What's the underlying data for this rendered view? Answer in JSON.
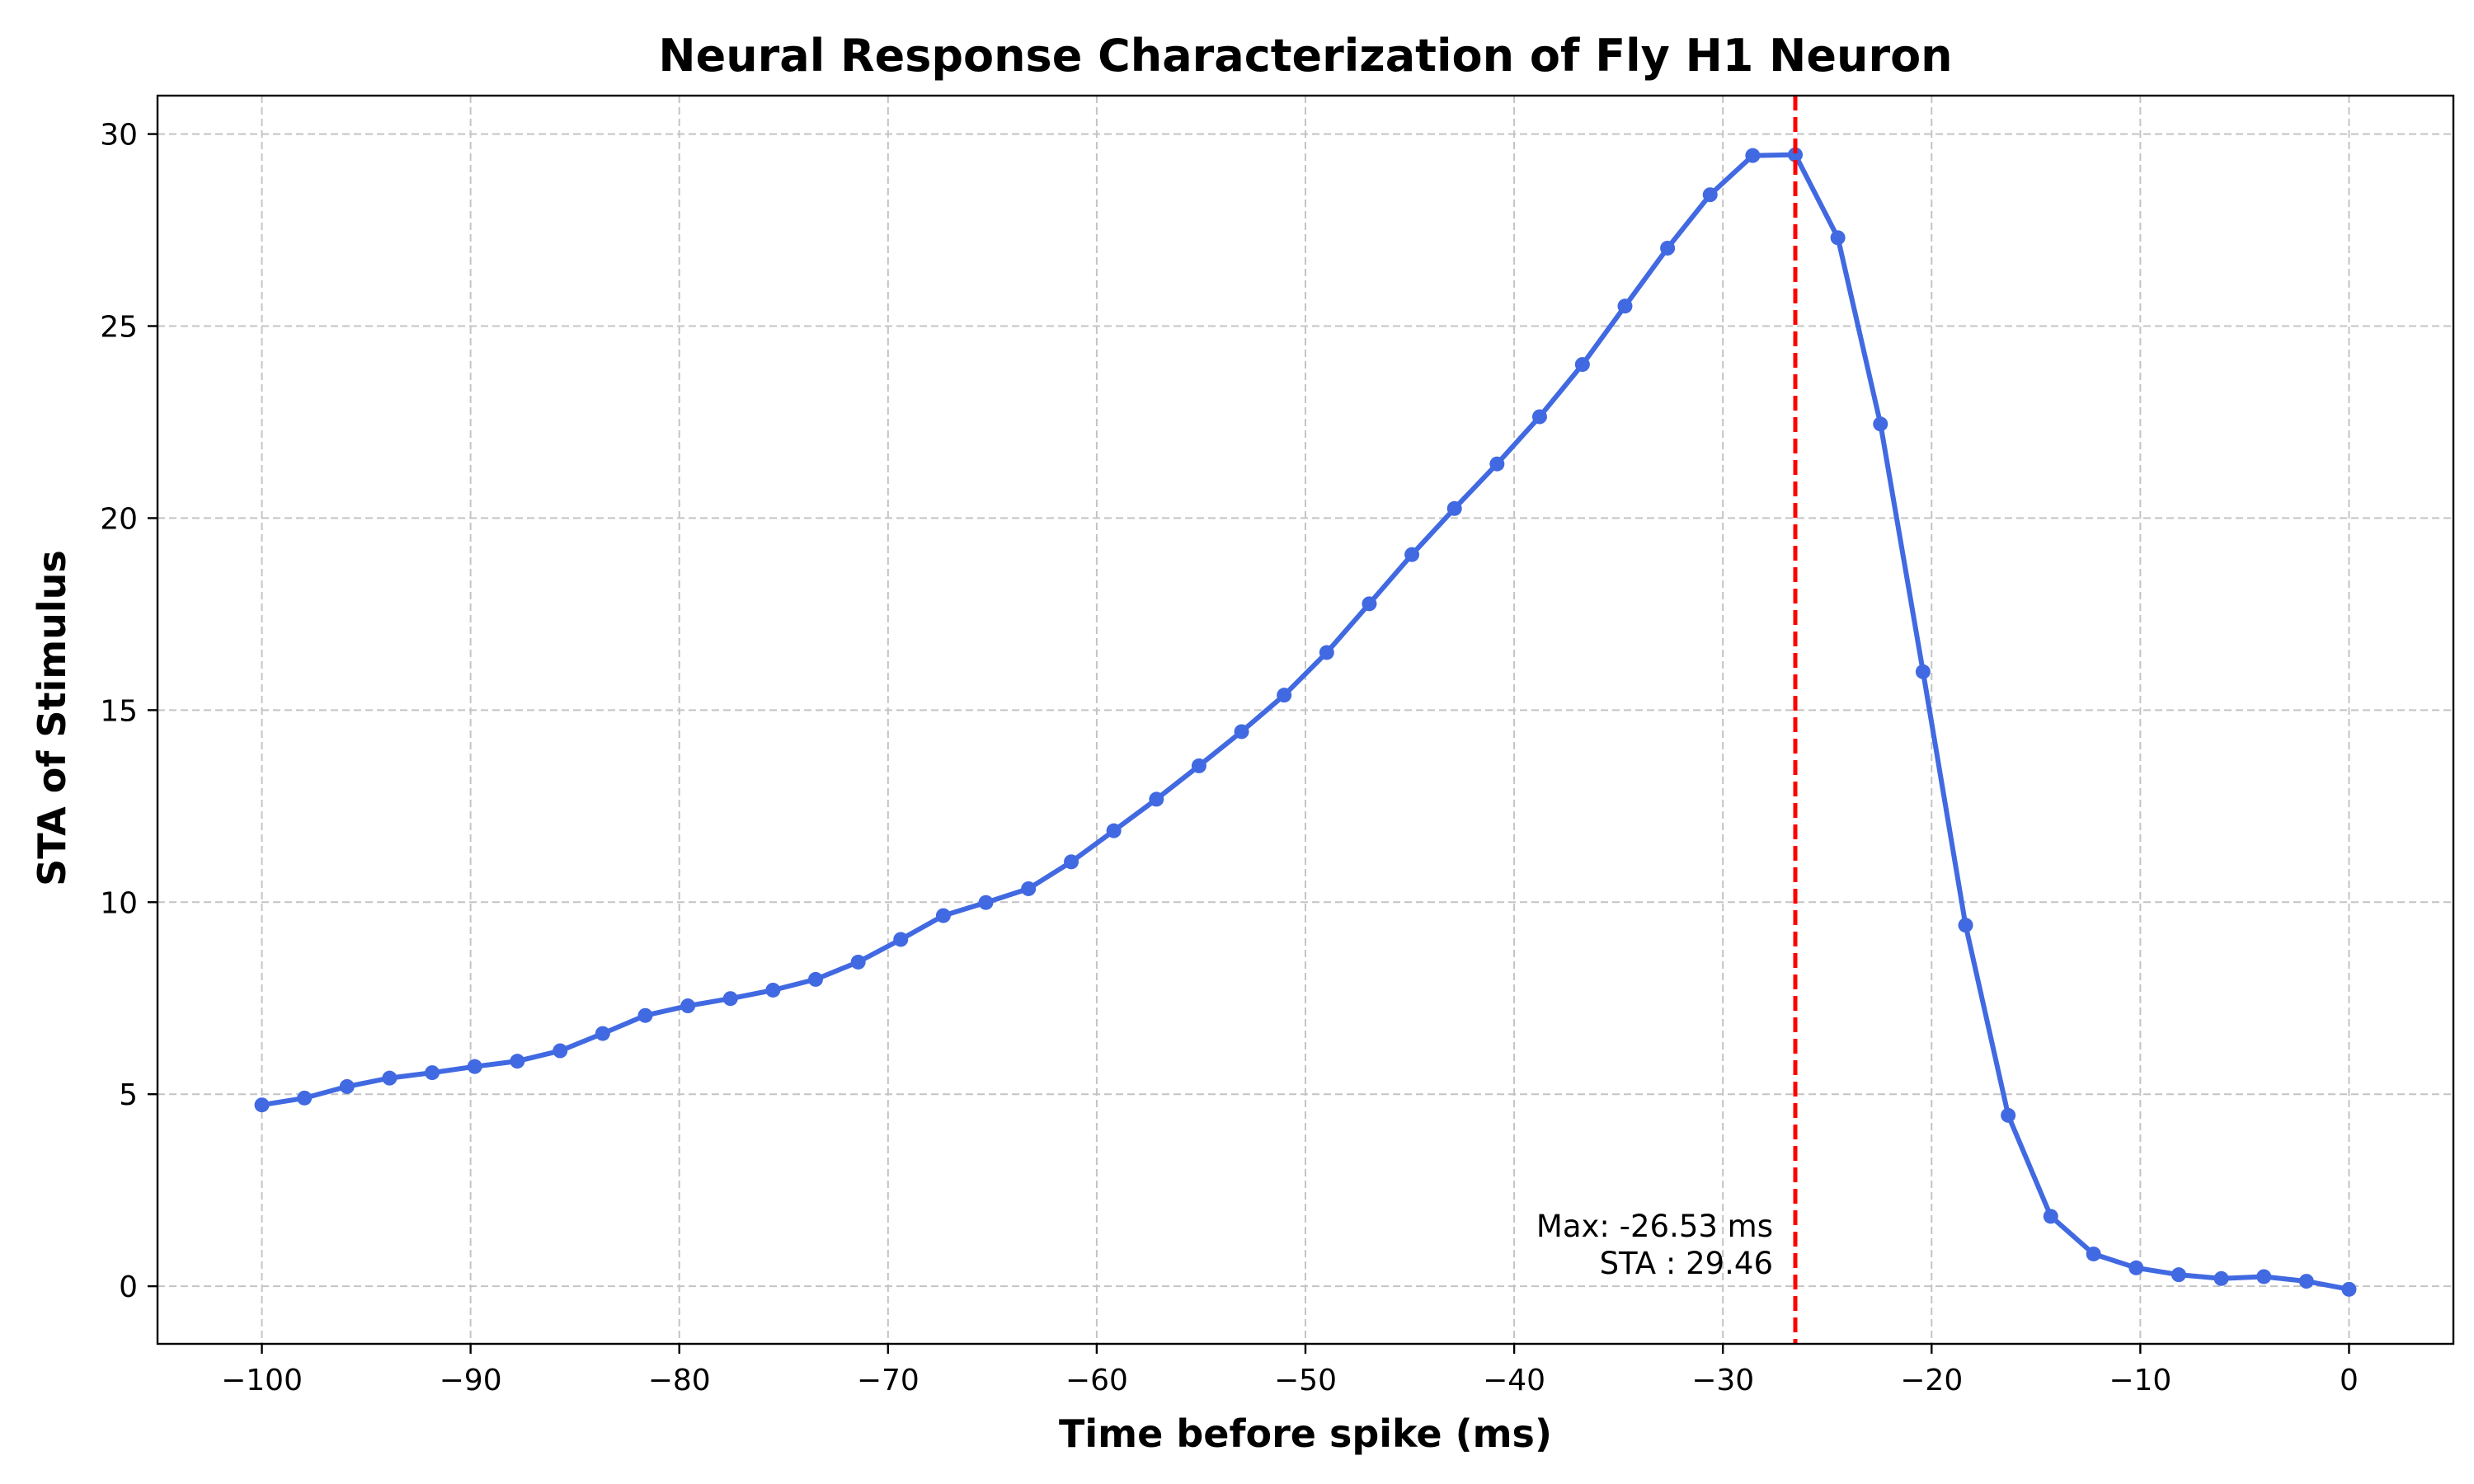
{
  "chart_data": {
    "type": "line",
    "title": "Neural Response Characterization of Fly H1 Neuron",
    "xlabel": "Time before spike (ms)",
    "ylabel": "STA of Stimulus",
    "xlim": [
      -105,
      5
    ],
    "ylim": [
      -1.5,
      31.0
    ],
    "xticks": [
      -100,
      -90,
      -80,
      -70,
      -60,
      -50,
      -40,
      -30,
      -20,
      -10,
      0
    ],
    "xtick_labels": [
      "−100",
      "−90",
      "−80",
      "−70",
      "−60",
      "−50",
      "−40",
      "−30",
      "−20",
      "−10",
      "0"
    ],
    "yticks": [
      0,
      5,
      10,
      15,
      20,
      25,
      30
    ],
    "ytick_labels": [
      "0",
      "5",
      "10",
      "15",
      "20",
      "25",
      "30"
    ],
    "grid": true,
    "line_color": "#4169e1",
    "marker_line_color": "#ff0000",
    "series": [
      {
        "x": [
          -100,
          -97.96,
          -95.92,
          -93.88,
          -91.84,
          -89.8,
          -87.76,
          -85.71,
          -83.67,
          -81.63,
          -79.59,
          -77.55,
          -75.51,
          -73.47,
          -71.43,
          -69.39,
          -67.35,
          -65.31,
          -63.27,
          -61.22,
          -59.18,
          -57.14,
          -55.1,
          -53.06,
          -51.02,
          -48.98,
          -46.94,
          -44.9,
          -42.86,
          -40.82,
          -38.78,
          -36.73,
          -34.69,
          -32.65,
          -30.61,
          -28.57,
          -26.53,
          -24.49,
          -22.45,
          -20.41,
          -18.37,
          -16.33,
          -14.29,
          -12.24,
          -10.2,
          -8.16,
          -6.12,
          -4.08,
          -2.04,
          0
        ],
        "y": [
          4.72,
          4.9,
          5.2,
          5.42,
          5.56,
          5.72,
          5.86,
          6.13,
          6.58,
          7.05,
          7.3,
          7.49,
          7.71,
          7.99,
          8.44,
          9.03,
          9.65,
          9.99,
          10.35,
          11.05,
          11.86,
          12.68,
          13.55,
          14.44,
          15.39,
          16.5,
          17.77,
          19.05,
          20.25,
          21.41,
          22.64,
          24.0,
          25.52,
          27.03,
          28.42,
          29.44,
          29.46,
          27.3,
          22.45,
          16.0,
          9.4,
          4.45,
          1.82,
          0.84,
          0.48,
          0.3,
          0.2,
          0.25,
          0.13,
          -0.08
        ]
      }
    ],
    "max_time": -26.53,
    "annotation_lines": [
      "Max: -26.53 ms",
      "STA : 29.46"
    ]
  }
}
